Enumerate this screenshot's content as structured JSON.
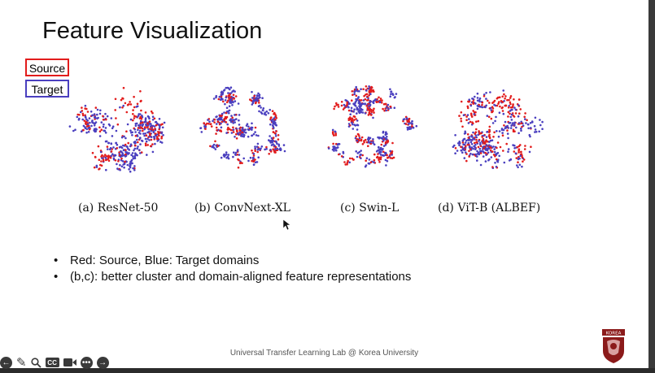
{
  "slide": {
    "title": "Feature Visualization",
    "legend": {
      "source_label": "Source",
      "target_label": "Target"
    },
    "panels": [
      {
        "caption": "(a) ResNet-50"
      },
      {
        "caption": "(b) ConvNext-XL"
      },
      {
        "caption": "(c) Swin-L"
      },
      {
        "caption": "(d) ViT-B (ALBEF)"
      }
    ],
    "bullets": [
      "Red: Source, Blue: Target domains",
      "(b,c): better cluster and domain-aligned feature representations"
    ],
    "footer": "Universal Transfer Learning Lab @ Korea University",
    "logo_text": "KOREA"
  },
  "toolbar": {
    "icons": [
      "back-icon",
      "pen-icon",
      "zoom-icon",
      "captions-icon",
      "camera-icon",
      "more-icon",
      "forward-icon"
    ],
    "cc_label": "CC"
  },
  "colors": {
    "source": "#e21c1c",
    "target": "#4a3fbf",
    "logo": "#8b1a1a"
  }
}
